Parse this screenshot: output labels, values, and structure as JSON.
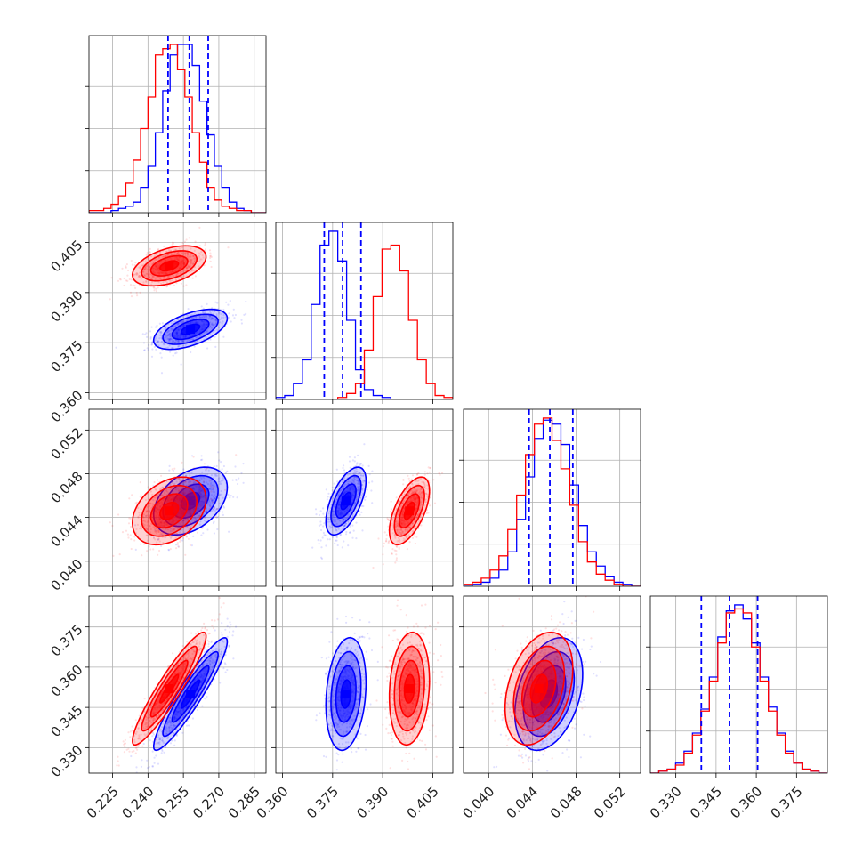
{
  "colors": {
    "red": "#ff0000",
    "blue": "#0000ff",
    "grid": "#b0b0b0",
    "frame": "#000000"
  },
  "chart_data": {
    "type": "scatter",
    "variant": "corner-plot",
    "grid": true,
    "series": [
      {
        "color": "#0000ff"
      },
      {
        "color": "#ff0000"
      }
    ],
    "parameters": [
      {
        "range": [
          0.215,
          0.29
        ],
        "ticks": [
          "0.225",
          "0.240",
          "0.255",
          "0.270",
          "0.285"
        ],
        "tick_values": [
          0.225,
          0.24,
          0.255,
          0.27,
          0.285
        ]
      },
      {
        "range": [
          0.358,
          0.411
        ],
        "ticks": [
          "0.360",
          "0.375",
          "0.390",
          "0.405"
        ],
        "tick_values": [
          0.36,
          0.375,
          0.39,
          0.405
        ]
      },
      {
        "range": [
          0.0377,
          0.0539
        ],
        "ticks": [
          "0.040",
          "0.044",
          "0.048",
          "0.052"
        ],
        "tick_values": [
          0.04,
          0.044,
          0.048,
          0.052
        ]
      },
      {
        "range": [
          0.3205,
          0.3865
        ],
        "ticks": [
          "0.330",
          "0.345",
          "0.360",
          "0.375"
        ],
        "tick_values": [
          0.33,
          0.345,
          0.36,
          0.375
        ]
      }
    ],
    "quantile_lines": [
      [
        0.2485,
        0.2575,
        0.2655
      ],
      [
        0.3725,
        0.378,
        0.3835
      ],
      [
        0.0437,
        0.0456,
        0.0477
      ],
      [
        0.3395,
        0.35,
        0.3605
      ]
    ],
    "means": {
      "blue": [
        0.258,
        0.379,
        0.0455,
        0.35
      ],
      "red": [
        0.249,
        0.398,
        0.0446,
        0.352
      ]
    },
    "sigmas": {
      "blue": [
        0.0078,
        0.003,
        0.00155,
        0.0105
      ],
      "red": [
        0.0078,
        0.003,
        0.00155,
        0.0105
      ]
    },
    "correlations": [
      {
        "pair": [
          0,
          1
        ],
        "blue": 0.55,
        "red": 0.45
      },
      {
        "pair": [
          0,
          2
        ],
        "blue": 0.4,
        "red": 0.35
      },
      {
        "pair": [
          1,
          2
        ],
        "blue": 0.6,
        "red": 0.6
      },
      {
        "pair": [
          0,
          3
        ],
        "blue": 0.93,
        "red": 0.93
      },
      {
        "pair": [
          1,
          3
        ],
        "blue": 0.2,
        "red": 0.15
      },
      {
        "pair": [
          2,
          3
        ],
        "blue": 0.35,
        "red": 0.35
      }
    ],
    "histograms": {
      "0": {
        "bins": [
          0.215,
          0.29
        ],
        "blue": [
          0,
          0,
          0,
          1,
          2,
          3,
          5,
          12,
          22,
          38,
          58,
          75,
          80,
          80,
          70,
          53,
          37,
          22,
          12,
          5,
          2,
          1,
          0,
          0
        ],
        "red": [
          1,
          1,
          2,
          4,
          8,
          14,
          25,
          40,
          55,
          75,
          78,
          80,
          68,
          55,
          38,
          24,
          12,
          6,
          3,
          2,
          1,
          1,
          0,
          0
        ]
      },
      "1": {
        "bins": [
          0.358,
          0.411
        ],
        "blue": [
          1,
          2,
          8,
          20,
          48,
          78,
          85,
          70,
          40,
          15,
          5,
          2,
          1,
          0,
          0,
          0,
          0,
          0,
          0,
          0
        ],
        "red": [
          0,
          0,
          0,
          0,
          0,
          0,
          0,
          1,
          3,
          8,
          25,
          52,
          76,
          78,
          65,
          40,
          20,
          8,
          2,
          1
        ]
      },
      "2": {
        "bins": [
          0.0377,
          0.0539
        ],
        "blue": [
          0,
          1,
          2,
          4,
          8,
          17,
          33,
          54,
          73,
          82,
          80,
          70,
          50,
          30,
          17,
          10,
          5,
          2,
          1,
          0
        ],
        "red": [
          1,
          2,
          4,
          8,
          15,
          28,
          45,
          65,
          80,
          83,
          72,
          58,
          40,
          22,
          12,
          6,
          3,
          1,
          0,
          0
        ]
      },
      "3": {
        "bins": [
          0.3205,
          0.3865
        ],
        "blue": [
          0,
          1,
          2,
          5,
          11,
          20,
          32,
          48,
          68,
          81,
          84,
          77,
          65,
          48,
          33,
          20,
          11,
          5,
          2,
          1,
          0
        ],
        "red": [
          0,
          1,
          2,
          4,
          10,
          19,
          31,
          46,
          65,
          80,
          82,
          80,
          63,
          46,
          31,
          19,
          10,
          5,
          2,
          1,
          0
        ]
      }
    },
    "levels_sigma": [
      0.5,
      1.0,
      1.5,
      2.0
    ]
  }
}
